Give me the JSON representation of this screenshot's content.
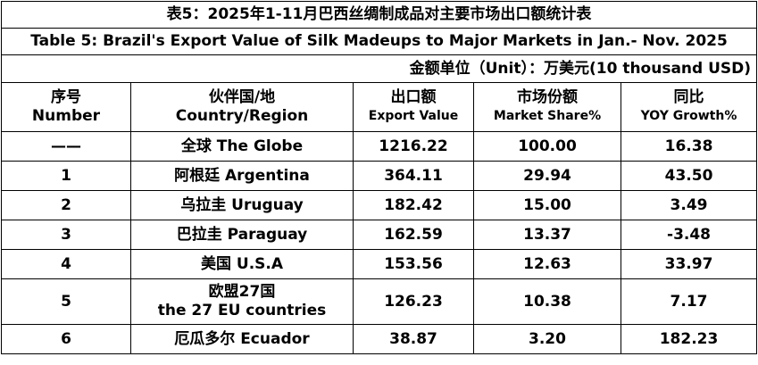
{
  "title_cn": "表5：2025年1-11月巴西丝绸制成品对主要市场出口额统计表",
  "title_en": "Table 5: Brazil's Export Value of Silk Madeups to Major Markets in Jan.- Nov. 2025",
  "unit": "金额单位（Unit）：万美元(10 thousand USD)",
  "headers": [
    {
      "cn": "序号",
      "en": "Number"
    },
    {
      "cn": "伙伴国/地",
      "en": "Country/Region"
    },
    {
      "cn": "出口额",
      "en": "Export Value"
    },
    {
      "cn": "市场份额",
      "en": "Market Share%"
    },
    {
      "cn": "同比",
      "en": "YOY Growth%"
    }
  ],
  "rows": [
    {
      "number": "——",
      "country": [
        "全球 The Globe"
      ],
      "value": "1216.22",
      "share": "100.00",
      "growth": "16.38"
    },
    {
      "number": "1",
      "country": [
        "阿根廷 Argentina"
      ],
      "value": "364.11",
      "share": "29.94",
      "growth": "43.50"
    },
    {
      "number": "2",
      "country": [
        "乌拉圭 Uruguay"
      ],
      "value": "182.42",
      "share": "15.00",
      "growth": "3.49"
    },
    {
      "number": "3",
      "country": [
        "巴拉圭 Paraguay"
      ],
      "value": "162.59",
      "share": "13.37",
      "growth": "-3.48"
    },
    {
      "number": "4",
      "country": [
        "美国  U.S.A"
      ],
      "value": "153.56",
      "share": "12.63",
      "growth": "33.97"
    },
    {
      "number": "5",
      "country": [
        "欧盟27国",
        "the 27 EU countries"
      ],
      "value": "126.23",
      "share": "10.38",
      "growth": "7.17"
    },
    {
      "number": "6",
      "country": [
        "厄瓜多尔 Ecuador"
      ],
      "value": "38.87",
      "share": "3.20",
      "growth": "182.23"
    }
  ]
}
